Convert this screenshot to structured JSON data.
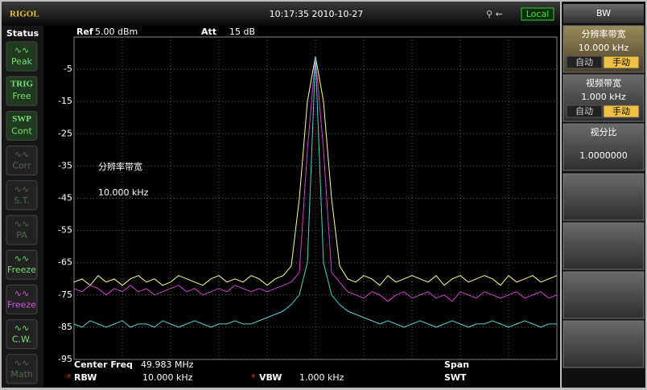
{
  "top_bar": {
    "logo": "RIGOL",
    "datetime": "10:17:35 2010-10-27",
    "mode": "Local"
  },
  "status_panel": {
    "title": "Status",
    "items": [
      {
        "label": "Peak"
      },
      {
        "tag": "TRIG",
        "label": "Free"
      },
      {
        "tag": "SWP",
        "label": "Cont"
      },
      {
        "label": "Corr"
      },
      {
        "label": "S.T."
      },
      {
        "label": "PA"
      },
      {
        "label": "Freeze"
      },
      {
        "label": "Freeze"
      },
      {
        "label": "C.W."
      },
      {
        "label": "Math"
      }
    ]
  },
  "chart_data": {
    "type": "line",
    "ref_label": "Ref",
    "ref_value": "5.00 dBm",
    "att_label": "Att",
    "att_value": "15 dB",
    "annotations": [
      "分辨率带宽",
      "10.000 kHz"
    ],
    "ylim": [
      -95,
      5
    ],
    "yticks": [
      -95,
      -85,
      -75,
      -65,
      -55,
      -45,
      -35,
      -25,
      -15,
      -5
    ],
    "grid": true,
    "series": [
      {
        "color": "#ffff90",
        "values": [
          -71,
          -70,
          -72,
          -69,
          -71,
          -70,
          -72,
          -70,
          -69,
          -71,
          -70,
          -72,
          -71,
          -69,
          -70,
          -71,
          -72,
          -70,
          -69,
          -71,
          -70,
          -71,
          -69,
          -70,
          -72,
          -70,
          -69,
          -66,
          -45,
          -15,
          -1,
          -15,
          -45,
          -66,
          -70,
          -71,
          -69,
          -70,
          -72,
          -69,
          -71,
          -70,
          -69,
          -70,
          -71,
          -69,
          -72,
          -70,
          -69,
          -71,
          -70,
          -69,
          -70,
          -72,
          -69,
          -71,
          -70,
          -69,
          -71,
          -70,
          -69
        ]
      },
      {
        "color": "#d040d0",
        "values": [
          -73,
          -74,
          -72,
          -73,
          -75,
          -73,
          -74,
          -72,
          -74,
          -73,
          -75,
          -74,
          -73,
          -72,
          -74,
          -73,
          -75,
          -74,
          -73,
          -74,
          -72,
          -73,
          -74,
          -73,
          -74,
          -73,
          -72,
          -71,
          -68,
          -30,
          -1,
          -30,
          -68,
          -71,
          -74,
          -75,
          -76,
          -74,
          -75,
          -77,
          -75,
          -74,
          -76,
          -75,
          -74,
          -76,
          -75,
          -77,
          -74,
          -75,
          -76,
          -74,
          -75,
          -76,
          -75,
          -74,
          -76,
          -75,
          -74,
          -76,
          -75
        ]
      },
      {
        "color": "#50d0d0",
        "values": [
          -84,
          -85,
          -83,
          -84,
          -85,
          -84,
          -83,
          -85,
          -84,
          -84,
          -85,
          -83,
          -84,
          -85,
          -84,
          -83,
          -84,
          -85,
          -84,
          -84,
          -83,
          -84,
          -84,
          -83,
          -82,
          -81,
          -80,
          -78,
          -75,
          -65,
          -1,
          -65,
          -75,
          -78,
          -80,
          -81,
          -82,
          -83,
          -84,
          -83,
          -84,
          -85,
          -84,
          -83,
          -84,
          -85,
          -84,
          -83,
          -84,
          -85,
          -84,
          -84,
          -83,
          -84,
          -85,
          -84,
          -83,
          -84,
          -85,
          -84,
          -84
        ]
      }
    ]
  },
  "sweep_info": {
    "center_label": "Center Freq",
    "center_value": "49.983 MHz",
    "span_label": "Span",
    "rbw_flag": "*",
    "rbw_label": "RBW",
    "rbw_value": "10.000 kHz",
    "vbw_flag": "*",
    "vbw_label": "VBW",
    "vbw_value": "1.000 kHz",
    "swt_label": "SWT"
  },
  "menu": {
    "title": "BW",
    "buttons": [
      {
        "label": "分辨率带宽",
        "value": "10.000 kHz",
        "options": [
          "自动",
          "手动"
        ]
      },
      {
        "label": "视频带宽",
        "value": "1.000 kHz",
        "options": [
          "自动",
          "手动"
        ]
      },
      {
        "label": "视分比",
        "value": "1.0000000"
      }
    ]
  }
}
